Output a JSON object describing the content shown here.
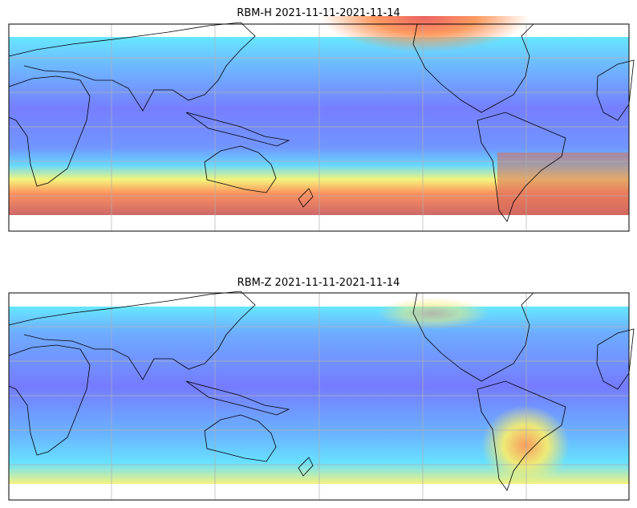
{
  "panels": [
    {
      "title": "RBM-H 2021-11-11-2021-11-14"
    },
    {
      "title": "RBM-Z 2021-11-11-2021-11-14"
    }
  ]
}
